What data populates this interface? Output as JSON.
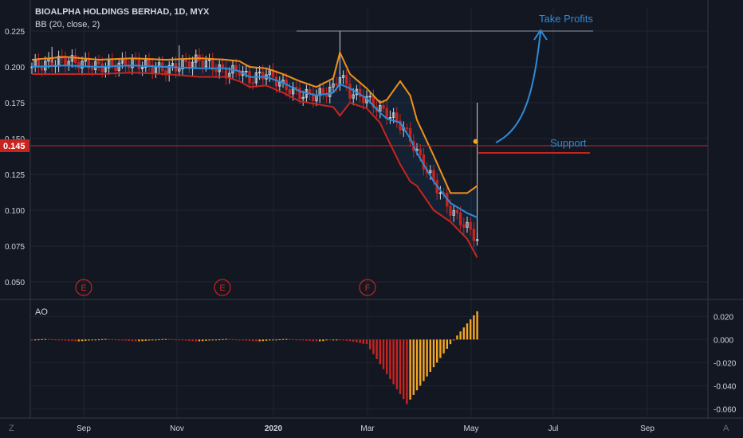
{
  "header": {
    "title": "BIOALPHA HOLDINGS BERHAD, 1D, MYX",
    "indicator_label": "BB (20, close, 2)",
    "oscillator_label": "AO"
  },
  "annotations": {
    "take_profits": "Take Profits",
    "support": "Support",
    "earnings_markers": [
      "E",
      "E",
      "F"
    ]
  },
  "footer": {
    "left_corner": "Z",
    "right_corner": "A"
  },
  "colors": {
    "background": "#131722",
    "grid": "#1f2430",
    "bb_upper": "#f0901c",
    "bb_basis": "#2b8cd8",
    "bb_lower": "#c8241f",
    "candle": "#d1d4dc",
    "price_line": "#c8241f",
    "ao_up": "#f5a623",
    "ao_down": "#c8241f",
    "annotation": "#2e8bd6"
  },
  "chart_data": [
    {
      "type": "line",
      "title": "BIOALPHA HOLDINGS BERHAD, 1D, MYX",
      "y_ticks": [
        "0.225",
        "0.200",
        "0.175",
        "0.150",
        "0.125",
        "0.100",
        "0.075",
        "0.050"
      ],
      "ylim": [
        0.04,
        0.23
      ],
      "last_price": "0.145",
      "x_ticks": [
        "Sep",
        "Nov",
        "2020",
        "Mar",
        "May",
        "Jul",
        "Sep"
      ],
      "series": [
        {
          "name": "BB upper",
          "x": [
            0,
            10,
            20,
            30,
            40,
            50,
            58,
            62,
            65,
            70,
            75,
            80,
            85,
            90,
            92,
            95,
            100,
            104,
            106,
            110,
            113,
            115,
            120,
            125,
            130,
            133
          ],
          "values": [
            0.205,
            0.207,
            0.205,
            0.206,
            0.205,
            0.206,
            0.205,
            0.204,
            0.2,
            0.199,
            0.195,
            0.19,
            0.186,
            0.192,
            0.21,
            0.195,
            0.185,
            0.175,
            0.177,
            0.19,
            0.18,
            0.163,
            0.138,
            0.112,
            0.112,
            0.117
          ]
        },
        {
          "name": "BB basis",
          "x": [
            0,
            10,
            20,
            30,
            40,
            50,
            58,
            62,
            65,
            70,
            75,
            80,
            85,
            90,
            92,
            95,
            100,
            104,
            106,
            110,
            113,
            115,
            120,
            125,
            130,
            133
          ],
          "values": [
            0.2,
            0.201,
            0.2,
            0.201,
            0.2,
            0.199,
            0.199,
            0.197,
            0.193,
            0.193,
            0.189,
            0.183,
            0.18,
            0.182,
            0.188,
            0.185,
            0.178,
            0.168,
            0.164,
            0.161,
            0.15,
            0.14,
            0.12,
            0.105,
            0.098,
            0.095
          ]
        },
        {
          "name": "BB lower",
          "x": [
            0,
            10,
            20,
            30,
            40,
            50,
            58,
            62,
            65,
            70,
            75,
            80,
            85,
            90,
            92,
            95,
            100,
            104,
            106,
            110,
            113,
            115,
            120,
            125,
            130,
            133
          ],
          "values": [
            0.195,
            0.195,
            0.195,
            0.196,
            0.195,
            0.193,
            0.193,
            0.19,
            0.186,
            0.187,
            0.182,
            0.176,
            0.174,
            0.172,
            0.166,
            0.175,
            0.171,
            0.161,
            0.151,
            0.132,
            0.12,
            0.117,
            0.1,
            0.092,
            0.08,
            0.067
          ]
        },
        {
          "name": "close",
          "x": [
            0,
            10,
            20,
            30,
            40,
            50,
            58,
            62,
            65,
            70,
            75,
            80,
            85,
            90,
            92,
            95,
            100,
            104,
            106,
            110,
            113,
            115,
            120,
            125,
            130,
            133
          ],
          "values": [
            0.2,
            0.205,
            0.2,
            0.203,
            0.198,
            0.205,
            0.196,
            0.198,
            0.191,
            0.196,
            0.187,
            0.181,
            0.18,
            0.185,
            0.195,
            0.182,
            0.178,
            0.17,
            0.168,
            0.16,
            0.15,
            0.14,
            0.12,
            0.1,
            0.088,
            0.08
          ]
        }
      ]
    },
    {
      "type": "bar",
      "title": "AO",
      "y_ticks": [
        "0.020",
        "0.000",
        "-0.020",
        "-0.040",
        "-0.060"
      ],
      "ylim": [
        -0.066,
        0.032
      ]
    }
  ]
}
